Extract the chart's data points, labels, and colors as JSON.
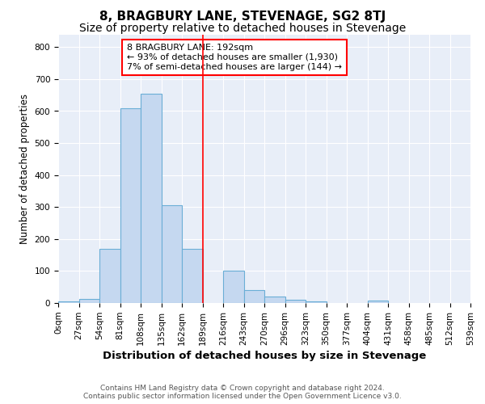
{
  "title": "8, BRAGBURY LANE, STEVENAGE, SG2 8TJ",
  "subtitle": "Size of property relative to detached houses in Stevenage",
  "xlabel": "Distribution of detached houses by size in Stevenage",
  "ylabel": "Number of detached properties",
  "bin_edges": [
    0,
    27,
    54,
    81,
    108,
    135,
    162,
    189,
    216,
    243,
    270,
    297,
    324,
    351,
    378,
    405,
    432,
    459,
    486,
    513,
    540
  ],
  "tick_labels": [
    "0sqm",
    "27sqm",
    "54sqm",
    "81sqm",
    "108sqm",
    "135sqm",
    "162sqm",
    "189sqm",
    "216sqm",
    "243sqm",
    "270sqm",
    "296sqm",
    "323sqm",
    "350sqm",
    "377sqm",
    "404sqm",
    "431sqm",
    "458sqm",
    "485sqm",
    "512sqm",
    "539sqm"
  ],
  "bar_heights": [
    5,
    12,
    170,
    610,
    655,
    305,
    170,
    0,
    100,
    40,
    20,
    10,
    5,
    0,
    0,
    8,
    0,
    0,
    0,
    0
  ],
  "bar_color": "#c5d8f0",
  "bar_edgecolor": "#6aaed6",
  "vline_x": 189,
  "vline_color": "red",
  "annotation_text": "8 BRAGBURY LANE: 192sqm\n← 93% of detached houses are smaller (1,930)\n7% of semi-detached houses are larger (144) →",
  "annotation_box_color": "white",
  "annotation_box_edgecolor": "red",
  "ylim": [
    0,
    840
  ],
  "yticks": [
    0,
    100,
    200,
    300,
    400,
    500,
    600,
    700,
    800
  ],
  "background_color": "#e8eef8",
  "grid_color": "#d0d8e8",
  "footer_text": "Contains HM Land Registry data © Crown copyright and database right 2024.\nContains public sector information licensed under the Open Government Licence v3.0.",
  "title_fontsize": 11,
  "subtitle_fontsize": 10,
  "xlabel_fontsize": 9.5,
  "ylabel_fontsize": 8.5,
  "tick_label_fontsize": 7.5,
  "annotation_fontsize": 8,
  "footer_fontsize": 6.5
}
